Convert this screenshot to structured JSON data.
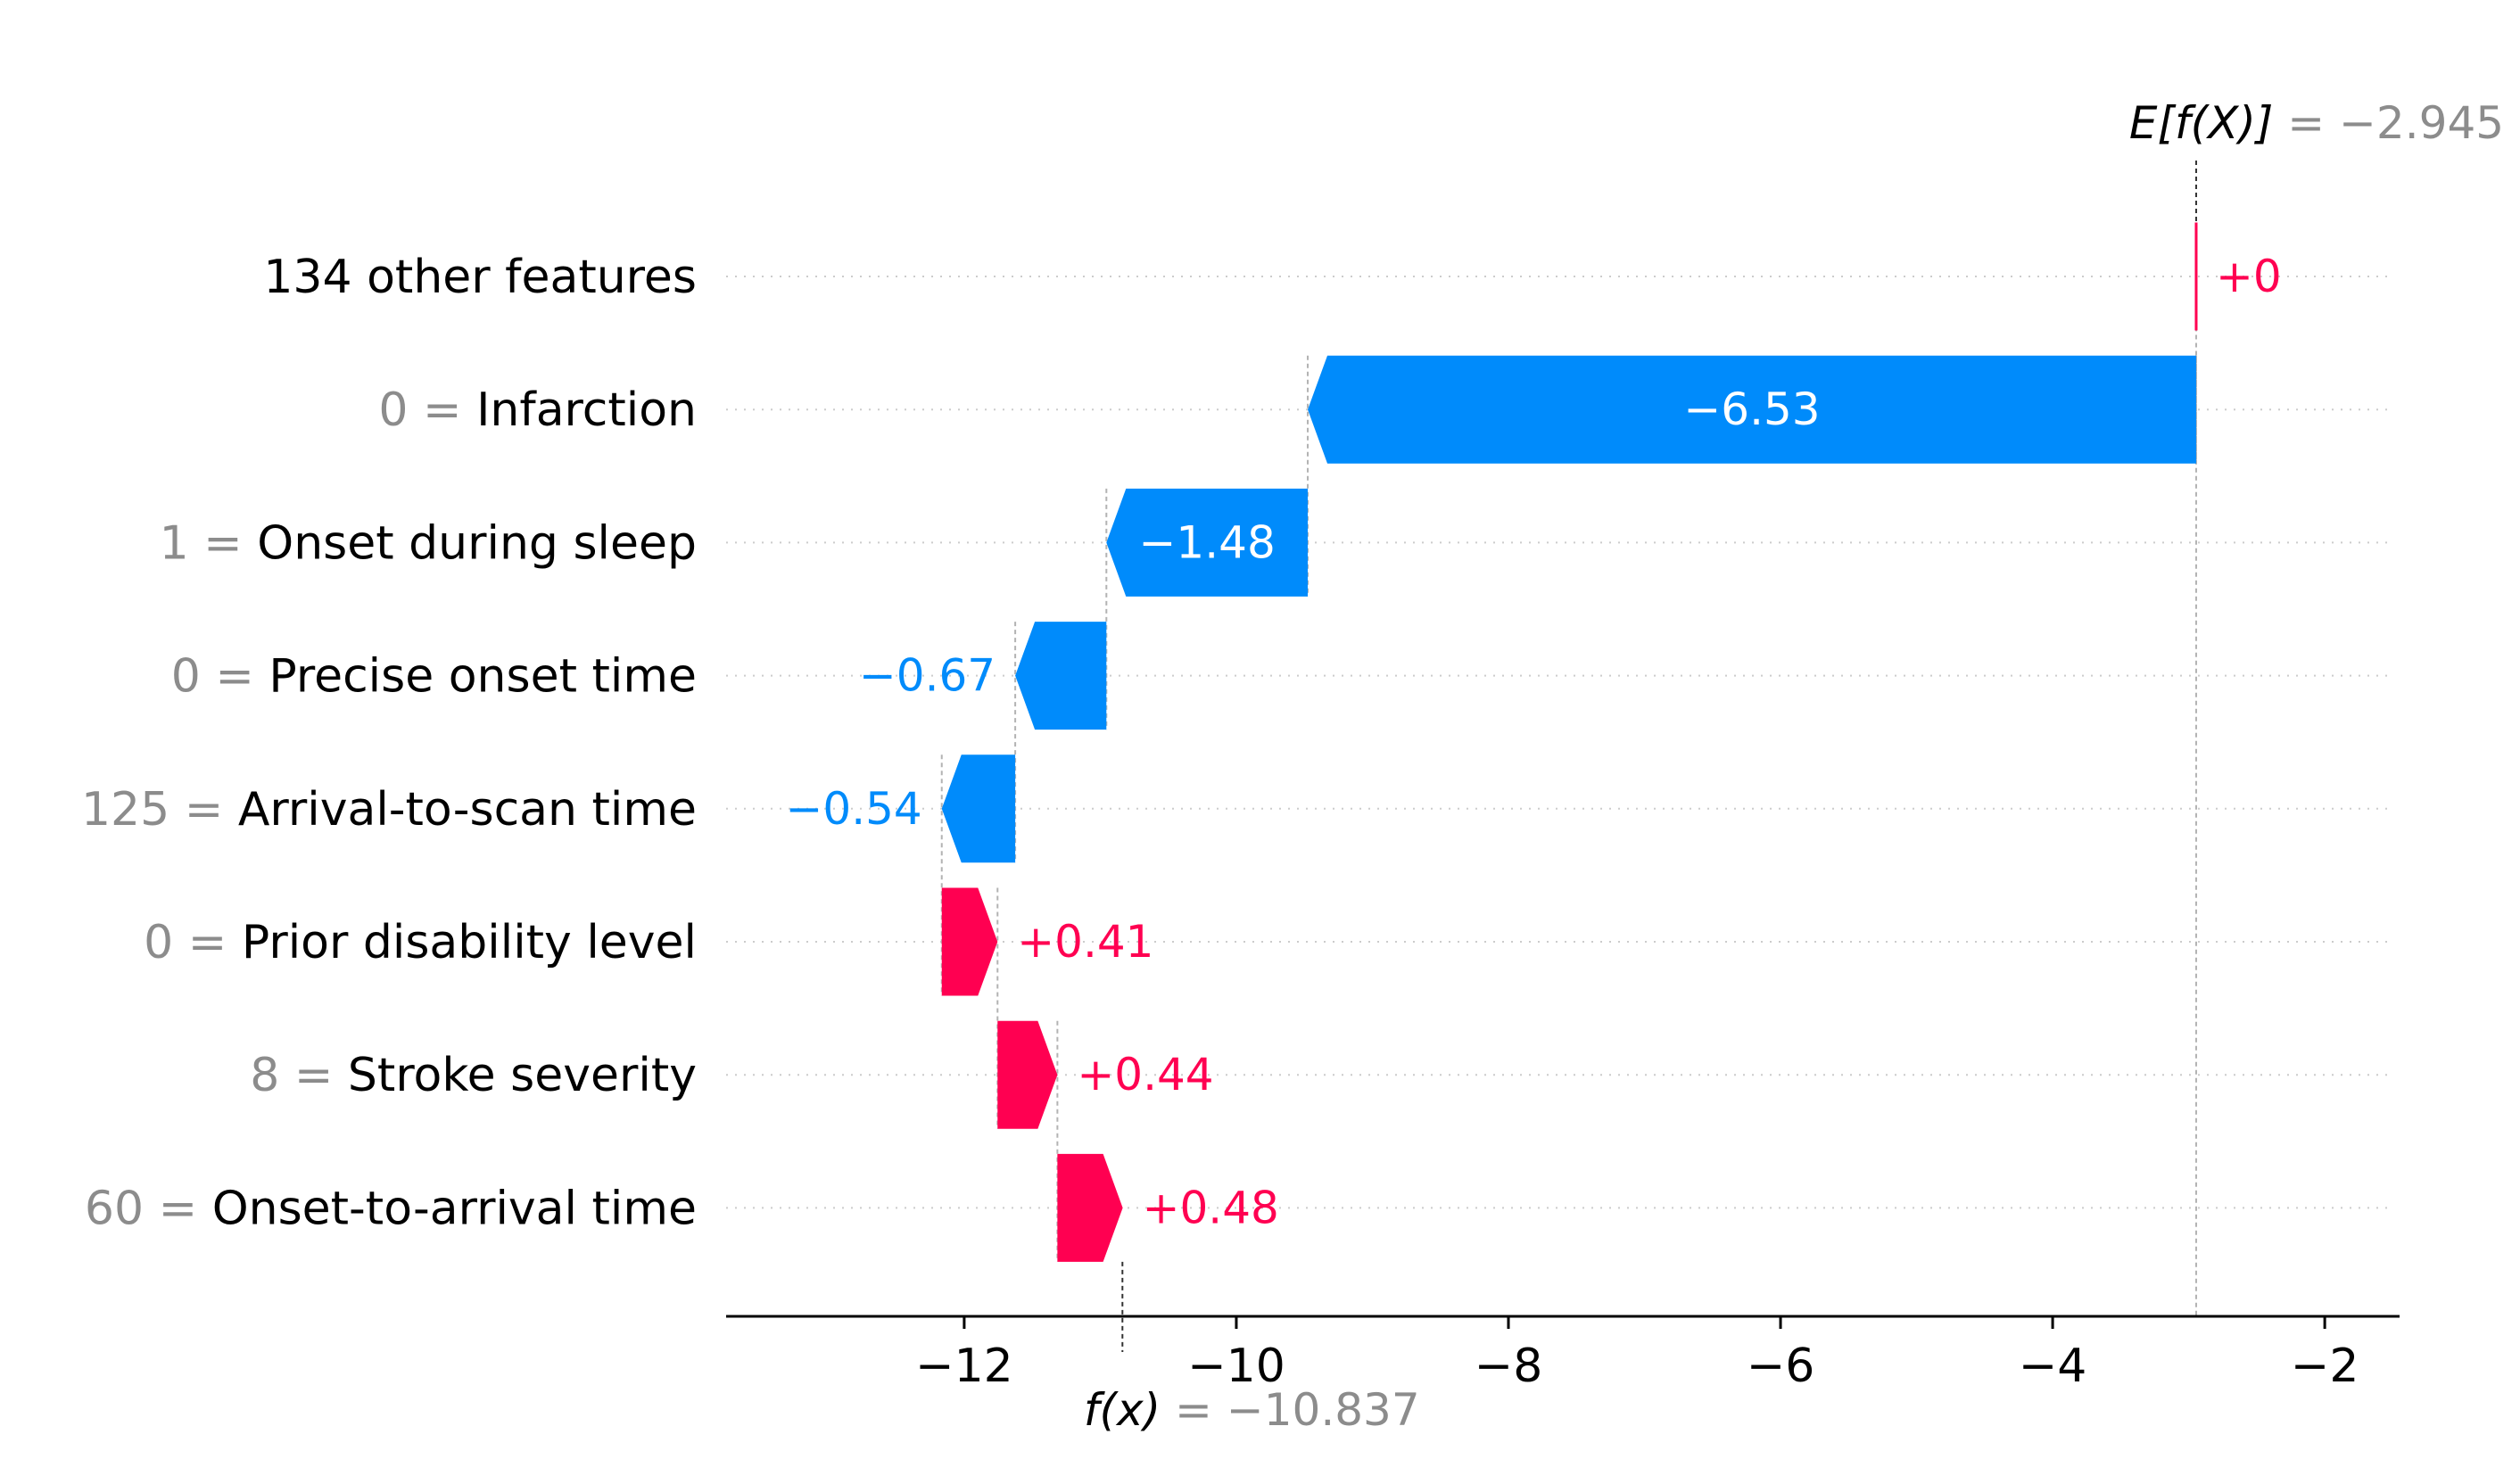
{
  "chart_data": {
    "type": "waterfall",
    "base_value": -2.945,
    "base_value_label": "= −2.945",
    "base_value_var": "E[f(X)]",
    "final_value": -10.837,
    "final_value_label": "= −10.837",
    "final_value_var": "f(x)",
    "features": [
      {
        "value": "",
        "name": "134 other features",
        "shap": 0.0,
        "label": "+0"
      },
      {
        "value": "0 =",
        "name": "Infarction",
        "shap": -6.53,
        "label": "−6.53"
      },
      {
        "value": "1 =",
        "name": "Onset during sleep",
        "shap": -1.48,
        "label": "−1.48"
      },
      {
        "value": "0 =",
        "name": "Precise onset time",
        "shap": -0.67,
        "label": "−0.67"
      },
      {
        "value": "125 =",
        "name": "Arrival-to-scan time",
        "shap": -0.54,
        "label": "−0.54"
      },
      {
        "value": "0 =",
        "name": "Prior disability level",
        "shap": 0.41,
        "label": "+0.41"
      },
      {
        "value": "8 =",
        "name": "Stroke severity",
        "shap": 0.44,
        "label": "+0.44"
      },
      {
        "value": "60 =",
        "name": "Onset-to-arrival time",
        "shap": 0.48,
        "label": "+0.48"
      }
    ],
    "xticks": [
      -12,
      -10,
      -8,
      -6,
      -4,
      -2
    ],
    "xtick_labels": [
      "−12",
      "−10",
      "−8",
      "−6",
      "−4",
      "−2"
    ],
    "xlim": [
      -13.75,
      -1.45
    ],
    "colors": {
      "positive": "#ff0051",
      "negative": "#008bfb",
      "grid": "#cccccc",
      "annotation": "#8c8c8c"
    }
  }
}
